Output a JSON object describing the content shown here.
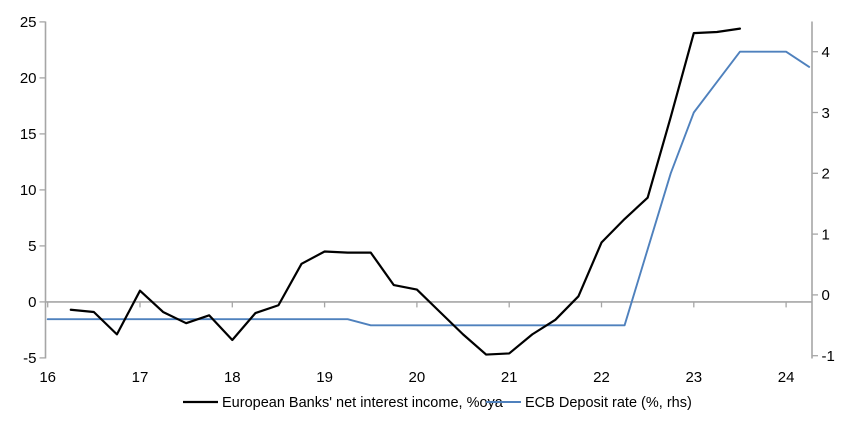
{
  "chart_data": {
    "type": "line",
    "title": "",
    "legend_position": "bottom-center",
    "grid": "zero-line-only",
    "background_color": "#ffffff",
    "axis_color": "#a6a6a6",
    "zero_line_color": "#a6a6a6",
    "label_color": "#000000",
    "x_axis": {
      "ticks": [
        16,
        17,
        18,
        19,
        20,
        21,
        22,
        23,
        24
      ],
      "labels": [
        "16",
        "17",
        "18",
        "19",
        "20",
        "21",
        "22",
        "23",
        "24"
      ],
      "range": [
        16,
        24.3
      ]
    },
    "left_axis": {
      "ticks": [
        -5,
        0,
        5,
        10,
        15,
        20,
        25
      ],
      "labels": [
        "-5",
        "0",
        "5",
        "10",
        "15",
        "20",
        "25"
      ],
      "range": [
        -5,
        25.1
      ]
    },
    "right_axis": {
      "ticks": [
        -1,
        0,
        1,
        2,
        3,
        4
      ],
      "labels": [
        "-1",
        "0",
        "1",
        "2",
        "3",
        "4"
      ],
      "range": [
        -1.04,
        4.49
      ]
    },
    "series": [
      {
        "name": "European Banks' net interest income, %oya",
        "axis": "left",
        "color": "#000000",
        "stroke_width": 2.2,
        "x": [
          16.25,
          16.5,
          16.75,
          17.0,
          17.25,
          17.5,
          17.75,
          18.0,
          18.25,
          18.5,
          18.75,
          19.0,
          19.25,
          19.5,
          19.75,
          20.0,
          20.25,
          20.5,
          20.75,
          21.0,
          21.25,
          21.5,
          21.75,
          22.0,
          22.25,
          22.5,
          22.75,
          23.0,
          23.25,
          23.5
        ],
        "values": [
          -0.7,
          -0.9,
          -2.9,
          1.0,
          -0.9,
          -1.9,
          -1.2,
          -3.4,
          -1.0,
          -0.3,
          3.4,
          4.5,
          4.4,
          4.4,
          1.5,
          1.1,
          -0.9,
          -2.9,
          -4.7,
          -4.6,
          -2.9,
          -1.6,
          0.5,
          5.3,
          7.4,
          9.3,
          16.5,
          24.0,
          24.1,
          24.4
        ]
      },
      {
        "name": "ECB Deposit rate (%, rhs)",
        "axis": "right",
        "color": "#4f81bd",
        "stroke_width": 1.9,
        "x": [
          16.0,
          16.25,
          16.5,
          16.75,
          17.0,
          17.25,
          17.5,
          17.75,
          18.0,
          18.25,
          18.5,
          18.75,
          19.0,
          19.25,
          19.5,
          19.75,
          20.0,
          20.25,
          20.5,
          20.75,
          21.0,
          21.25,
          21.5,
          21.75,
          22.0,
          22.25,
          22.5,
          22.75,
          23.0,
          23.25,
          23.5,
          23.75,
          24.0,
          24.25
        ],
        "values": [
          -0.4,
          -0.4,
          -0.4,
          -0.4,
          -0.4,
          -0.4,
          -0.4,
          -0.4,
          -0.4,
          -0.4,
          -0.4,
          -0.4,
          -0.4,
          -0.4,
          -0.5,
          -0.5,
          -0.5,
          -0.5,
          -0.5,
          -0.5,
          -0.5,
          -0.5,
          -0.5,
          -0.5,
          -0.5,
          -0.5,
          0.75,
          2.0,
          3.0,
          3.5,
          4.0,
          4.0,
          4.0,
          3.75
        ]
      }
    ]
  }
}
